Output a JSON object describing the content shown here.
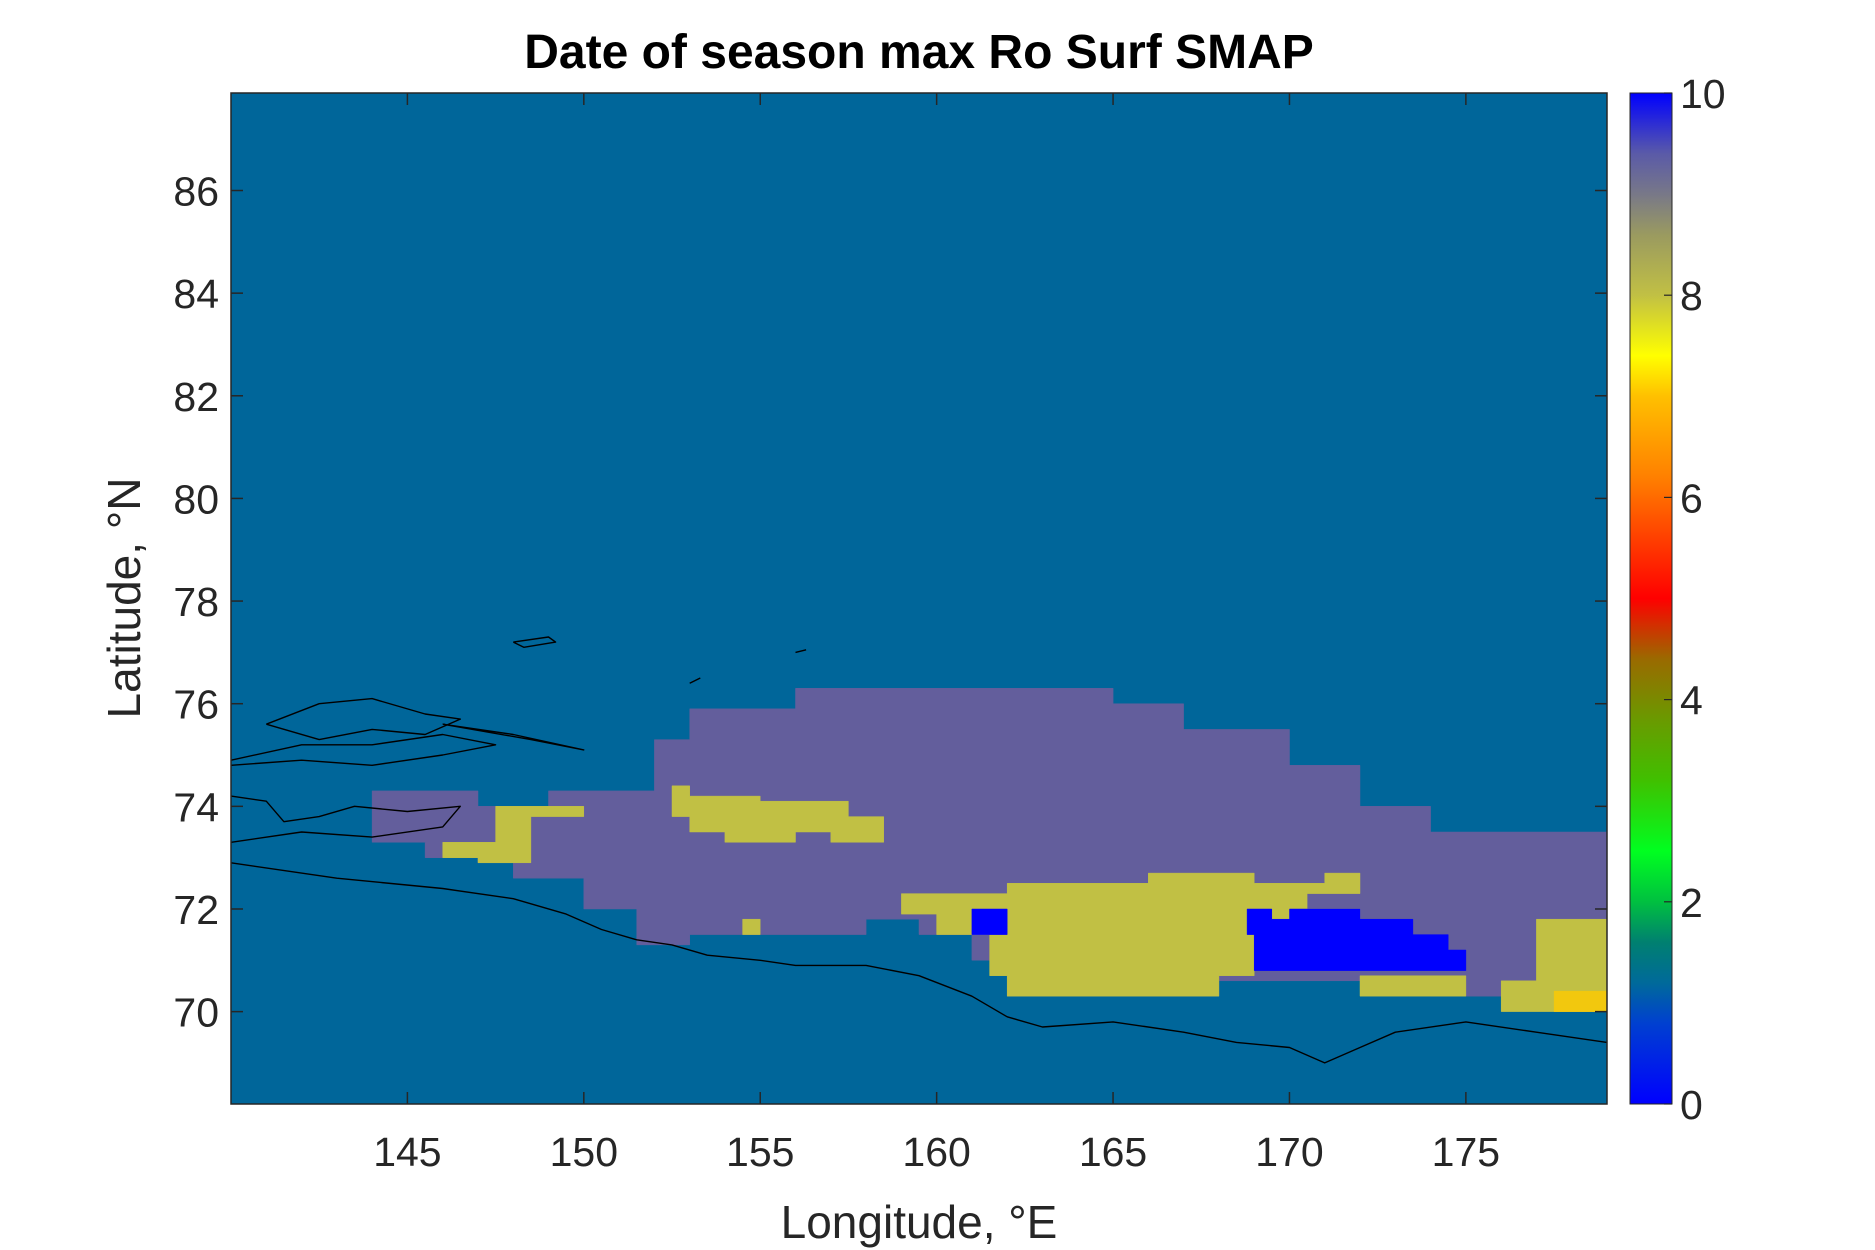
{
  "chart_data": {
    "type": "heatmap",
    "title": "Date of season max Ro Surf SMAP",
    "xlabel": "Longitude, °E",
    "ylabel": "Latitude, °N",
    "xlim": [
      140,
      179
    ],
    "ylim": [
      68.2,
      87.9
    ],
    "x_ticks": [
      145,
      150,
      155,
      160,
      165,
      170,
      175
    ],
    "x_tick_labels": [
      "145",
      "150",
      "155",
      "160",
      "165",
      "170",
      "175"
    ],
    "y_ticks": [
      70,
      72,
      74,
      76,
      78,
      80,
      82,
      84,
      86
    ],
    "y_tick_labels": [
      "70",
      "72",
      "74",
      "76",
      "78",
      "80",
      "82",
      "84",
      "86"
    ],
    "colorbar": {
      "range": [
        0,
        10
      ],
      "ticks": [
        0,
        2,
        4,
        6,
        8,
        10
      ],
      "tick_labels": [
        "0",
        "2",
        "4",
        "6",
        "8",
        "10"
      ],
      "colormap": "jet-like (blue–cyan–green–yellow–orange–red–brown–olive–gray–blue)"
    },
    "background_value": 1,
    "background_color": "#00669a",
    "value_colors": {
      "1": "#00669a",
      "7.9": "#c1c044",
      "7.5": "#f2c80e",
      "9.2": "#635e9c",
      "10": "#0000fe"
    },
    "regions": [
      {
        "value": 9.2,
        "polygon": [
          [
            144,
            74.3
          ],
          [
            147,
            74.3
          ],
          [
            147,
            74
          ],
          [
            149,
            74
          ],
          [
            149,
            74.3
          ],
          [
            152,
            74.3
          ],
          [
            152,
            75.3
          ],
          [
            153,
            75.3
          ],
          [
            153,
            75.9
          ],
          [
            156,
            75.9
          ],
          [
            156,
            76.3
          ],
          [
            165,
            76.3
          ],
          [
            165,
            76
          ],
          [
            167,
            76
          ],
          [
            167,
            75.5
          ],
          [
            170,
            75.5
          ],
          [
            170,
            74.8
          ],
          [
            172,
            74.8
          ],
          [
            172,
            74
          ],
          [
            174,
            74
          ],
          [
            174,
            73.5
          ],
          [
            179,
            73.5
          ],
          [
            179,
            71.7
          ],
          [
            177,
            71.7
          ],
          [
            177,
            70.3
          ],
          [
            174,
            70.3
          ],
          [
            174,
            70.6
          ],
          [
            168,
            70.6
          ],
          [
            168,
            70.3
          ],
          [
            162,
            70.3
          ],
          [
            162,
            71
          ],
          [
            161,
            71
          ],
          [
            161,
            71.5
          ],
          [
            159.5,
            71.5
          ],
          [
            159.5,
            71.8
          ],
          [
            158,
            71.8
          ],
          [
            158,
            71.5
          ],
          [
            153,
            71.5
          ],
          [
            153,
            71.3
          ],
          [
            151.5,
            71.3
          ],
          [
            151.5,
            72
          ],
          [
            150,
            72
          ],
          [
            150,
            72.6
          ],
          [
            148,
            72.6
          ],
          [
            148,
            72.9
          ],
          [
            147,
            72.9
          ],
          [
            147,
            73
          ],
          [
            145.5,
            73
          ],
          [
            145.5,
            73.3
          ],
          [
            144,
            73.3
          ]
        ]
      },
      {
        "value": 7.9,
        "polygon": [
          [
            146,
            73.3
          ],
          [
            147.5,
            73.3
          ],
          [
            147.5,
            74
          ],
          [
            150,
            74
          ],
          [
            150,
            73.8
          ],
          [
            148.5,
            73.8
          ],
          [
            148.5,
            72.9
          ],
          [
            147,
            72.9
          ],
          [
            147,
            73
          ],
          [
            146,
            73
          ]
        ]
      },
      {
        "value": 7.9,
        "polygon": [
          [
            152.5,
            74.4
          ],
          [
            153,
            74.4
          ],
          [
            153,
            74.2
          ],
          [
            155,
            74.2
          ],
          [
            155,
            74.1
          ],
          [
            157.5,
            74.1
          ],
          [
            157.5,
            73.8
          ],
          [
            158.5,
            73.8
          ],
          [
            158.5,
            73.3
          ],
          [
            157,
            73.3
          ],
          [
            157,
            73.5
          ],
          [
            156,
            73.5
          ],
          [
            156,
            73.3
          ],
          [
            154,
            73.3
          ],
          [
            154,
            73.5
          ],
          [
            153,
            73.5
          ],
          [
            153,
            73.8
          ],
          [
            152.5,
            73.8
          ]
        ]
      },
      {
        "value": 7.9,
        "polygon": [
          [
            159,
            72.3
          ],
          [
            162,
            72.3
          ],
          [
            162,
            72.5
          ],
          [
            166,
            72.5
          ],
          [
            166,
            72.7
          ],
          [
            169,
            72.7
          ],
          [
            169,
            72.5
          ],
          [
            171,
            72.5
          ],
          [
            171,
            72.7
          ],
          [
            172,
            72.7
          ],
          [
            172,
            72.3
          ],
          [
            170.5,
            72.3
          ],
          [
            170.5,
            72
          ],
          [
            172,
            72
          ],
          [
            172,
            71.5
          ],
          [
            169,
            71.5
          ],
          [
            169,
            70.7
          ],
          [
            168,
            70.7
          ],
          [
            168,
            70.3
          ],
          [
            162,
            70.3
          ],
          [
            162,
            70.7
          ],
          [
            161.5,
            70.7
          ],
          [
            161.5,
            71.5
          ],
          [
            160,
            71.5
          ],
          [
            160,
            71.9
          ],
          [
            159,
            71.9
          ]
        ]
      },
      {
        "value": 7.9,
        "polygon": [
          [
            177,
            71.8
          ],
          [
            179,
            71.8
          ],
          [
            179,
            70
          ],
          [
            176,
            70
          ],
          [
            176,
            70.6
          ],
          [
            177,
            70.6
          ]
        ]
      },
      {
        "value": 7.9,
        "polygon": [
          [
            172,
            70.7
          ],
          [
            175,
            70.7
          ],
          [
            175,
            70.3
          ],
          [
            172,
            70.3
          ]
        ]
      },
      {
        "value": 7.9,
        "polygon": [
          [
            154.5,
            71.8
          ],
          [
            155,
            71.8
          ],
          [
            155,
            71.5
          ],
          [
            154.5,
            71.5
          ]
        ]
      },
      {
        "value": 7.5,
        "polygon": [
          [
            177.5,
            70.4
          ],
          [
            179,
            70.4
          ],
          [
            179,
            70
          ],
          [
            177.5,
            70
          ]
        ]
      },
      {
        "value": 10,
        "polygon": [
          [
            161,
            72
          ],
          [
            162,
            72
          ],
          [
            162,
            71.5
          ],
          [
            161,
            71.5
          ]
        ]
      },
      {
        "value": 10,
        "polygon": [
          [
            168.8,
            72
          ],
          [
            169.5,
            72
          ],
          [
            169.5,
            71.8
          ],
          [
            170,
            71.8
          ],
          [
            170,
            72
          ],
          [
            172,
            72
          ],
          [
            172,
            71.8
          ],
          [
            173.5,
            71.8
          ],
          [
            173.5,
            71.5
          ],
          [
            174.5,
            71.5
          ],
          [
            174.5,
            71.2
          ],
          [
            175,
            71.2
          ],
          [
            175,
            70.8
          ],
          [
            169,
            70.8
          ],
          [
            169,
            71.5
          ],
          [
            168.8,
            71.5
          ]
        ]
      }
    ],
    "coastlines": [
      [
        [
          140,
          74.9
        ],
        [
          142,
          75.2
        ],
        [
          144,
          75.2
        ],
        [
          146,
          75.4
        ],
        [
          147.5,
          75.2
        ],
        [
          146,
          75
        ],
        [
          144,
          74.8
        ],
        [
          142,
          74.9
        ],
        [
          140,
          74.8
        ]
      ],
      [
        [
          141,
          75.6
        ],
        [
          142.5,
          76
        ],
        [
          144,
          76.1
        ],
        [
          145.5,
          75.8
        ],
        [
          146.5,
          75.7
        ],
        [
          145.5,
          75.4
        ],
        [
          144,
          75.5
        ],
        [
          142.5,
          75.3
        ],
        [
          141,
          75.6
        ]
      ],
      [
        [
          140,
          74.2
        ],
        [
          141,
          74.1
        ],
        [
          141.5,
          73.7
        ],
        [
          142.5,
          73.8
        ],
        [
          143.5,
          74
        ],
        [
          145,
          73.9
        ],
        [
          146.5,
          74
        ],
        [
          146,
          73.6
        ],
        [
          144,
          73.4
        ],
        [
          142,
          73.5
        ],
        [
          140,
          73.3
        ]
      ],
      [
        [
          140,
          72.9
        ],
        [
          143,
          72.6
        ],
        [
          146,
          72.4
        ],
        [
          148,
          72.2
        ],
        [
          149.5,
          71.9
        ],
        [
          150.5,
          71.6
        ],
        [
          151.5,
          71.4
        ],
        [
          152.5,
          71.3
        ],
        [
          153.5,
          71.1
        ],
        [
          155,
          71
        ],
        [
          156,
          70.9
        ],
        [
          158,
          70.9
        ],
        [
          159.5,
          70.7
        ],
        [
          161,
          70.3
        ],
        [
          162,
          69.9
        ],
        [
          163,
          69.7
        ],
        [
          165,
          69.8
        ],
        [
          167,
          69.6
        ],
        [
          168.5,
          69.4
        ],
        [
          170,
          69.3
        ],
        [
          171,
          69
        ],
        [
          172,
          69.3
        ],
        [
          173,
          69.6
        ],
        [
          175,
          69.8
        ],
        [
          177,
          69.6
        ],
        [
          179,
          69.4
        ]
      ],
      [
        [
          148,
          77.2
        ],
        [
          149,
          77.3
        ],
        [
          149.2,
          77.2
        ],
        [
          148.3,
          77.1
        ],
        [
          148,
          77.2
        ]
      ],
      [
        [
          146,
          75.6
        ],
        [
          148,
          75.4
        ],
        [
          150,
          75.1
        ],
        [
          148.5,
          75.3
        ],
        [
          146,
          75.6
        ]
      ],
      [
        [
          156,
          77.0
        ],
        [
          156.3,
          77.05
        ]
      ],
      [
        [
          153,
          76.4
        ],
        [
          153.3,
          76.5
        ]
      ]
    ]
  }
}
